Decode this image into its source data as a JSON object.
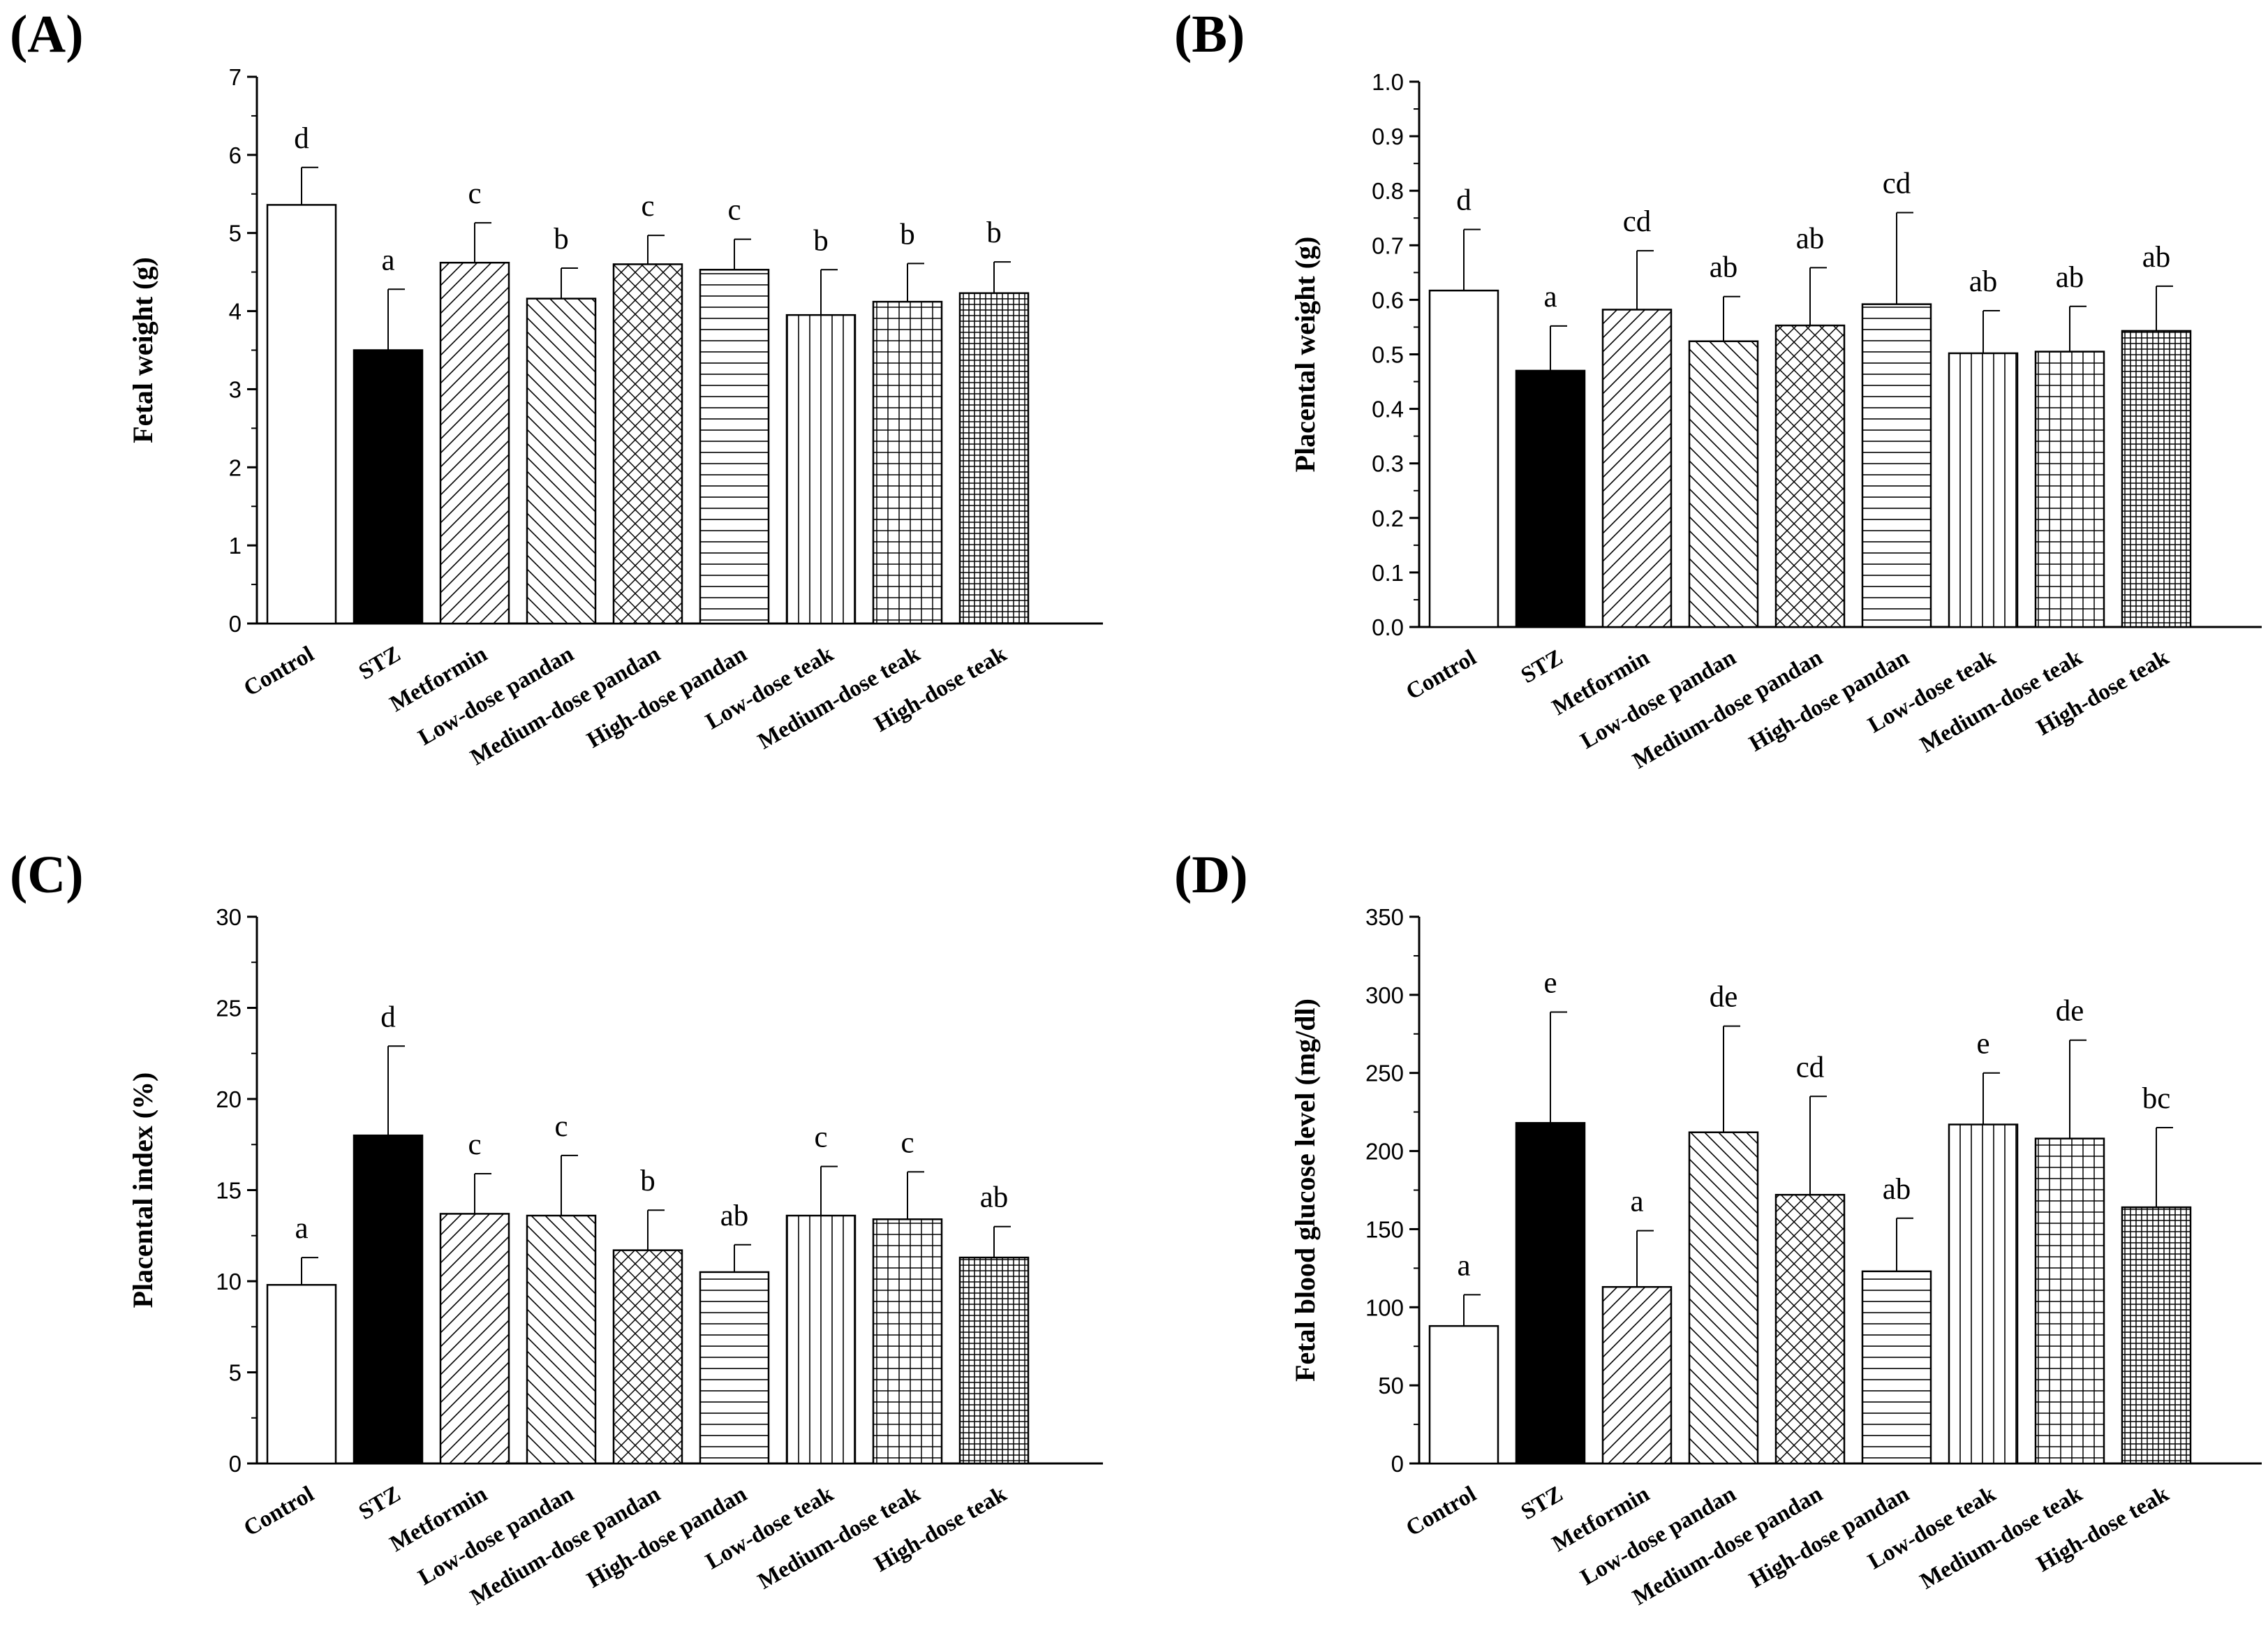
{
  "categories": [
    "Control",
    "STZ",
    "Metformin",
    "Low-dose pandan",
    "Medium-dose pandan",
    "High-dose pandan",
    "Low-dose teak",
    "Medium-dose teak",
    "High-dose teak"
  ],
  "patterns": [
    "white",
    "black",
    "diag-fwd",
    "diag-back",
    "crosshatch",
    "horizontal",
    "vertical",
    "grid",
    "finegrid"
  ],
  "colors": {
    "bar_stroke": "#000000",
    "fill": "#ffffff",
    "stz": "#000000"
  },
  "chart_data": [
    {
      "type": "bar",
      "panel_label": "(A)",
      "title": "",
      "ylabel": "Fetal weight (g)",
      "ylim": [
        0,
        7
      ],
      "yticks": [
        0,
        1,
        2,
        3,
        4,
        5,
        6,
        7
      ],
      "tick_labels": [
        "0",
        "1",
        "2",
        "3",
        "4",
        "5",
        "6",
        "7"
      ],
      "values": [
        5.36,
        3.5,
        4.62,
        4.16,
        4.6,
        4.53,
        3.95,
        4.12,
        4.23
      ],
      "errors": [
        0.48,
        0.78,
        0.51,
        0.39,
        0.37,
        0.39,
        0.58,
        0.49,
        0.4
      ],
      "sig_letters": [
        "d",
        "a",
        "c",
        "b",
        "c",
        "c",
        "b",
        "b",
        "b"
      ]
    },
    {
      "type": "bar",
      "panel_label": "(B)",
      "title": "",
      "ylabel": "Placental weight (g)",
      "ylim": [
        0,
        1.0
      ],
      "yticks": [
        0,
        0.1,
        0.2,
        0.3,
        0.4,
        0.5,
        0.6,
        0.7,
        0.8,
        0.9,
        1.0
      ],
      "tick_labels": [
        "0.0",
        "0.1",
        "0.2",
        "0.3",
        "0.4",
        "0.5",
        "0.6",
        "0.7",
        "0.8",
        "0.9",
        "1.0"
      ],
      "values": [
        0.617,
        0.47,
        0.582,
        0.524,
        0.553,
        0.592,
        0.502,
        0.505,
        0.543
      ],
      "errors": [
        0.112,
        0.082,
        0.108,
        0.082,
        0.106,
        0.168,
        0.078,
        0.083,
        0.082
      ],
      "sig_letters": [
        "d",
        "a",
        "cd",
        "ab",
        "ab",
        "cd",
        "ab",
        "ab",
        "ab"
      ]
    },
    {
      "type": "bar",
      "panel_label": "(C)",
      "title": "",
      "ylabel": "Placental index (%)",
      "ylim": [
        0,
        30
      ],
      "yticks": [
        0,
        5,
        10,
        15,
        20,
        25,
        30
      ],
      "tick_labels": [
        "0",
        "5",
        "10",
        "15",
        "20",
        "25",
        "30"
      ],
      "values": [
        9.8,
        18.0,
        13.7,
        13.6,
        11.7,
        10.5,
        13.6,
        13.4,
        11.3
      ],
      "errors": [
        1.5,
        4.9,
        2.2,
        3.3,
        2.2,
        1.5,
        2.7,
        2.6,
        1.7
      ],
      "sig_letters": [
        "a",
        "d",
        "c",
        "c",
        "b",
        "ab",
        "c",
        "c",
        "ab"
      ]
    },
    {
      "type": "bar",
      "panel_label": "(D)",
      "title": "",
      "ylabel": "Fetal blood glucose level (mg/dl)",
      "ylim": [
        0,
        350
      ],
      "yticks": [
        0,
        50,
        100,
        150,
        200,
        250,
        300,
        350
      ],
      "tick_labels": [
        "0",
        "50",
        "100",
        "150",
        "200",
        "250",
        "300",
        "350"
      ],
      "values": [
        88,
        218,
        113,
        212,
        172,
        123,
        217,
        208,
        164
      ],
      "errors": [
        20,
        71,
        36,
        68,
        63,
        34,
        33,
        63,
        51
      ],
      "sig_letters": [
        "a",
        "e",
        "a",
        "de",
        "cd",
        "ab",
        "e",
        "de",
        "bc"
      ]
    }
  ]
}
